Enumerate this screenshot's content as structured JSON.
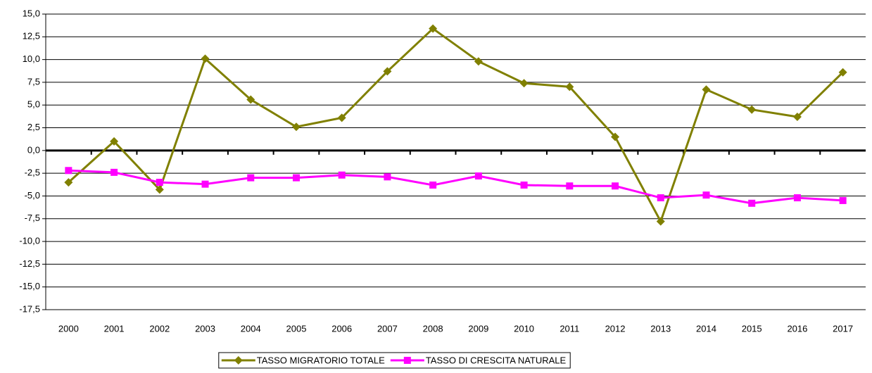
{
  "chart_data": {
    "type": "line",
    "categories": [
      "2000",
      "2001",
      "2002",
      "2003",
      "2004",
      "2005",
      "2006",
      "2007",
      "2008",
      "2009",
      "2010",
      "2011",
      "2012",
      "2013",
      "2014",
      "2015",
      "2016",
      "2017"
    ],
    "series": [
      {
        "name": "TASSO MIGRATORIO TOTALE",
        "color": "#808000",
        "marker": "diamond",
        "values": [
          -3.5,
          1.0,
          -4.3,
          10.1,
          5.6,
          2.6,
          3.6,
          8.7,
          13.4,
          9.8,
          7.4,
          7.0,
          1.5,
          -7.8,
          6.7,
          4.5,
          3.7,
          8.6
        ]
      },
      {
        "name": "TASSO DI CRESCITA NATURALE",
        "color": "#ff00ff",
        "marker": "square",
        "values": [
          -2.2,
          -2.4,
          -3.5,
          -3.7,
          -3.0,
          -3.0,
          -2.7,
          -2.9,
          -3.8,
          -2.8,
          -3.8,
          -3.9,
          -3.9,
          -5.2,
          -4.9,
          -5.8,
          -5.2,
          -5.5
        ]
      }
    ],
    "ylim": [
      -17.5,
      15
    ],
    "yticks": [
      {
        "value": -17.5,
        "label": "-17,5"
      },
      {
        "value": -15,
        "label": "-15,0"
      },
      {
        "value": -12.5,
        "label": "-12,5"
      },
      {
        "value": -10,
        "label": "-10,0"
      },
      {
        "value": -7.5,
        "label": "-7,5"
      },
      {
        "value": -5,
        "label": "-5,0"
      },
      {
        "value": -2.5,
        "label": "-2,5"
      },
      {
        "value": 0,
        "label": "0,0"
      },
      {
        "value": 2.5,
        "label": "2,5"
      },
      {
        "value": 5,
        "label": "5,0"
      },
      {
        "value": 7.5,
        "label": "7,5"
      },
      {
        "value": 10,
        "label": "10,0"
      },
      {
        "value": 12.5,
        "label": "12,5"
      },
      {
        "value": 15,
        "label": "15,0"
      }
    ],
    "grid": true,
    "legend": "bottom"
  }
}
